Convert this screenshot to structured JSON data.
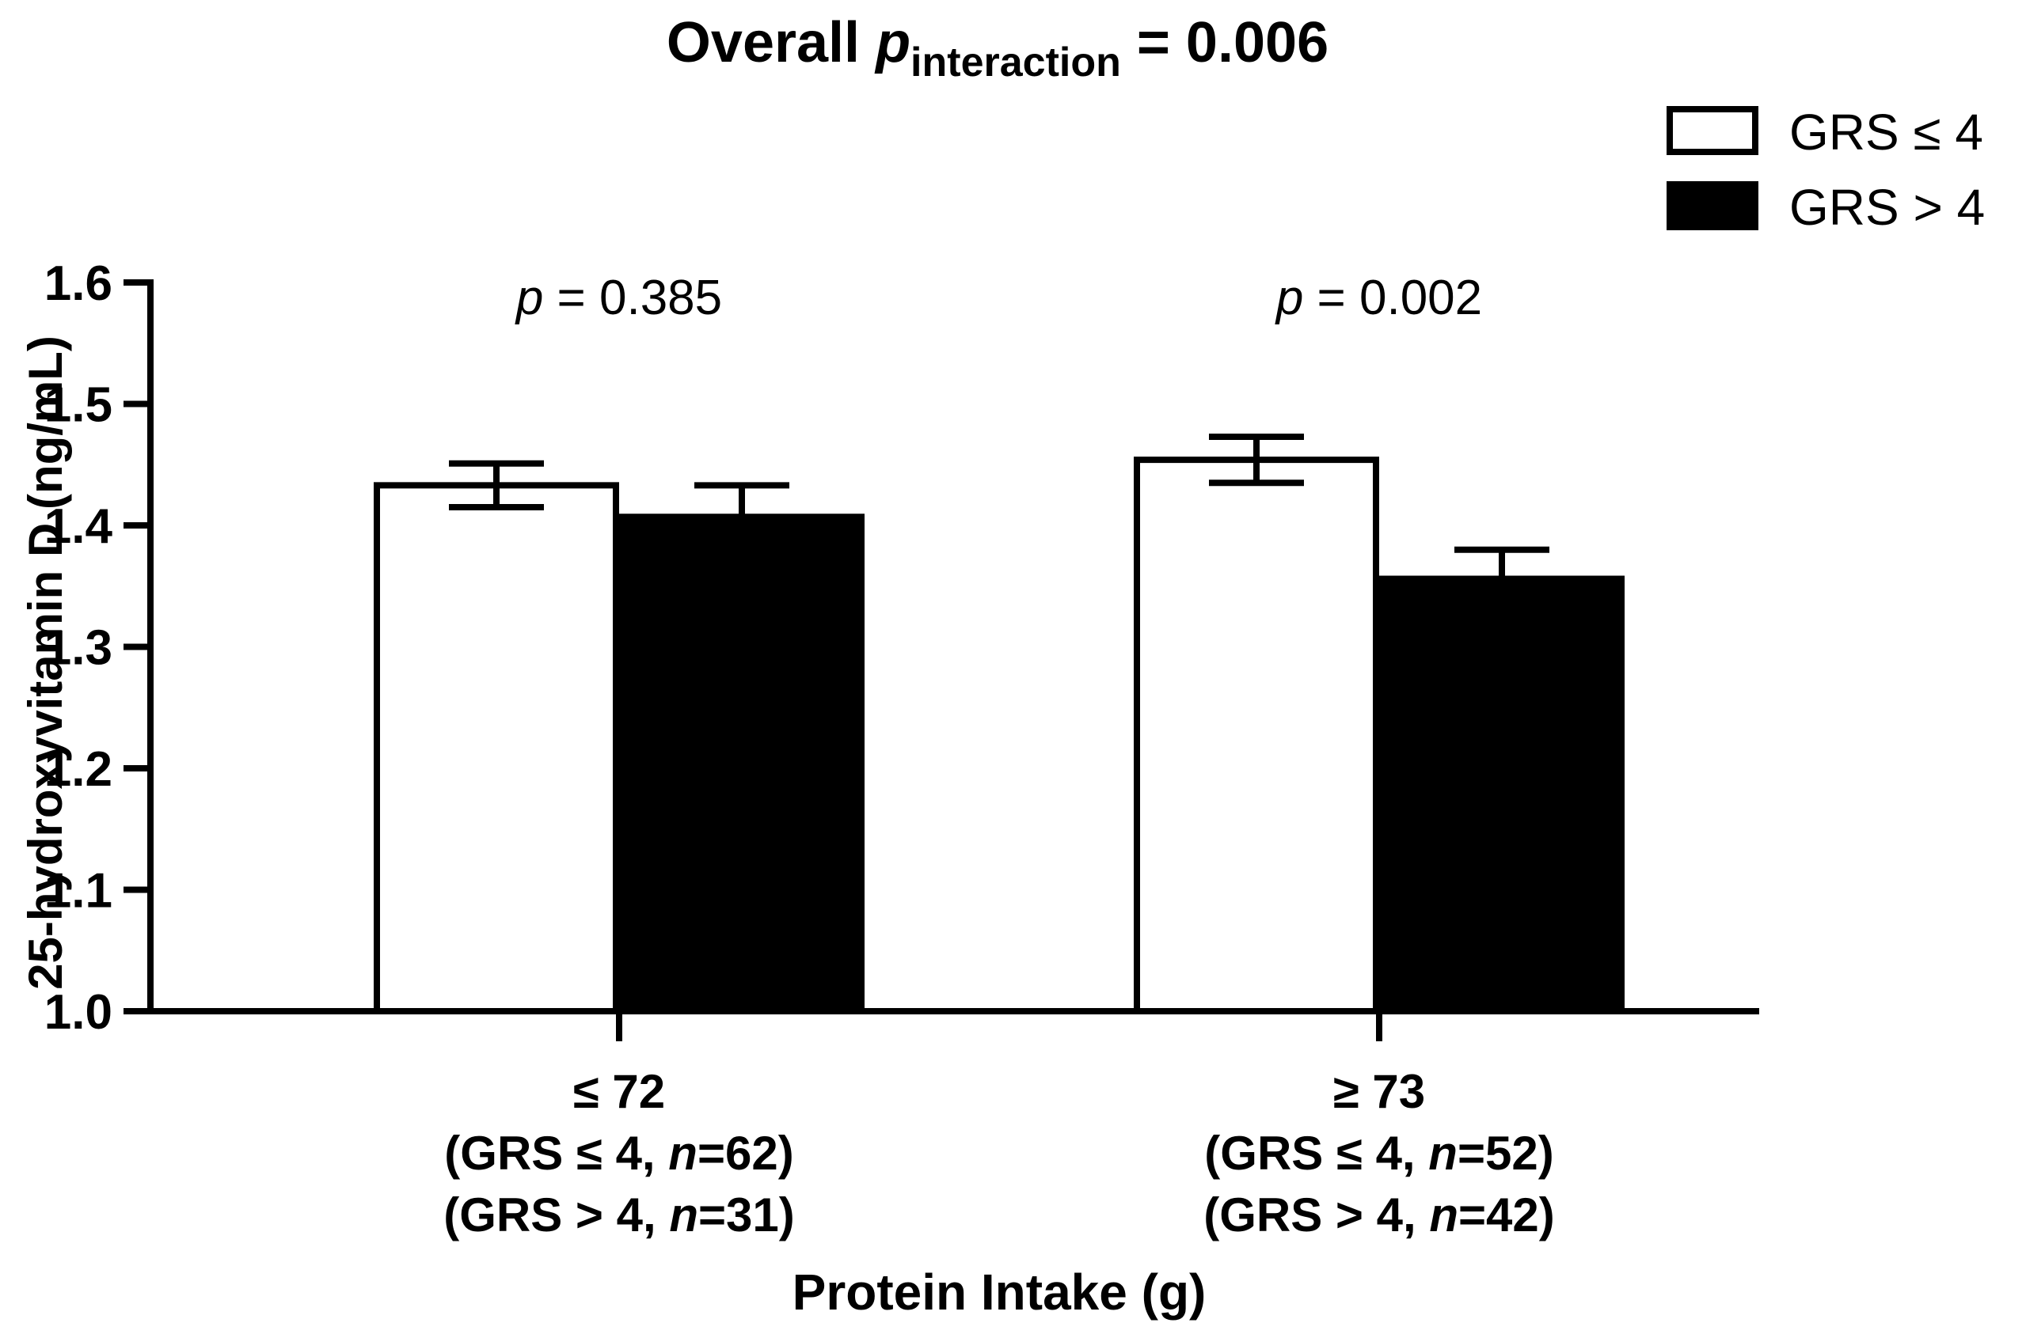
{
  "chart_data": {
    "type": "bar",
    "title": {
      "prefix": "Overall ",
      "p": "p",
      "subscript": "interaction",
      "suffix": " = 0.006"
    },
    "ylabel": "25-hydroxyvitamin D (ng/mL)",
    "xlabel": "Protein Intake (g)",
    "ylim": [
      1.0,
      1.6
    ],
    "yticks": [
      "1.0",
      "1.1",
      "1.2",
      "1.3",
      "1.4",
      "1.5",
      "1.6"
    ],
    "categories": [
      {
        "label": "≤ 72",
        "sub": [
          {
            "pre": "(GRS ≤ 4, ",
            "n": "n",
            "post": "=62)"
          },
          {
            "pre": "(GRS > 4, ",
            "n": "n",
            "post": "=31)"
          }
        ],
        "pvalue": {
          "p": "p",
          "text": " = 0.385"
        }
      },
      {
        "label": "≥ 73",
        "sub": [
          {
            "pre": "(GRS ≤ 4, ",
            "n": "n",
            "post": "=52)"
          },
          {
            "pre": "(GRS > 4, ",
            "n": "n",
            "post": "=42)"
          }
        ],
        "pvalue": {
          "p": "p",
          "text": " = 0.002"
        }
      }
    ],
    "series": [
      {
        "name": "GRS ≤ 4",
        "fill": "#ffffff",
        "values": [
          1.433,
          1.454
        ],
        "errors": [
          0.018,
          0.019
        ]
      },
      {
        "name": "GRS > 4",
        "fill": "#000000",
        "values": [
          1.407,
          1.356
        ],
        "errors": [
          0.026,
          0.024
        ]
      }
    ],
    "legend": {
      "position": "top-right"
    },
    "grid": false
  }
}
